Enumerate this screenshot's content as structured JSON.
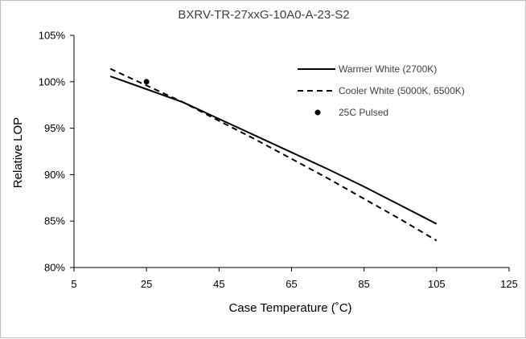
{
  "chart_data": {
    "type": "line",
    "title": "BXRV-TR-27xxG-10A0-A-23-S2",
    "xlabel": "Case Temperature (˚C)",
    "ylabel": "Relative LOP",
    "xlim": [
      5,
      125
    ],
    "ylim": [
      80,
      105
    ],
    "x_ticks": [
      "5",
      "25",
      "45",
      "65",
      "85",
      "105",
      "125"
    ],
    "y_ticks": [
      "80%",
      "85%",
      "90%",
      "95%",
      "100%",
      "105%"
    ],
    "grid": false,
    "legend_position": "top-right",
    "series": [
      {
        "name": "Warmer White (2700K)",
        "style": "solid",
        "color": "#000000",
        "points": [
          [
            15,
            100.6
          ],
          [
            25,
            99.2
          ],
          [
            35,
            97.8
          ],
          [
            45,
            96.0
          ],
          [
            55,
            94.2
          ],
          [
            65,
            92.4
          ],
          [
            75,
            90.6
          ],
          [
            85,
            88.7
          ],
          [
            95,
            86.7
          ],
          [
            105,
            84.7
          ]
        ]
      },
      {
        "name": "Cooler White (5000K, 6500K)",
        "style": "dashed",
        "color": "#000000",
        "points": [
          [
            15,
            101.4
          ],
          [
            25,
            99.6
          ],
          [
            35,
            97.8
          ],
          [
            45,
            95.8
          ],
          [
            55,
            93.8
          ],
          [
            65,
            91.7
          ],
          [
            75,
            89.6
          ],
          [
            85,
            87.4
          ],
          [
            95,
            85.2
          ],
          [
            105,
            82.9
          ]
        ]
      },
      {
        "name": "25C Pulsed",
        "style": "marker",
        "color": "#000000",
        "points": [
          [
            25,
            100.0
          ]
        ]
      }
    ]
  }
}
